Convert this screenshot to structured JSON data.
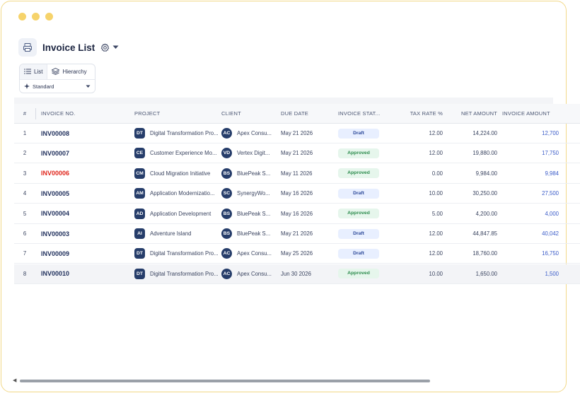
{
  "window": {
    "title": "Invoice List",
    "dot_color": "#f6d36b"
  },
  "icons": {
    "app": "invoice-list-icon",
    "settings": "gear-icon",
    "dropdown": "caret-down-icon",
    "list": "list-icon",
    "hierarchy": "layers-icon"
  },
  "views": {
    "list_label": "List",
    "hierarchy_label": "Hierarchy",
    "filter_label": "Standard"
  },
  "table": {
    "headers": {
      "num": "#",
      "invoice_no": "INVOICE NO.",
      "project": "PROJECT",
      "client": "CLIENT",
      "due_date": "DUE DATE",
      "status": "INVOICE STAT...",
      "tax_rate": "TAX RATE %",
      "net_amount": "NET AMOUNT",
      "invoice_amount": "INVOICE AMOUNT"
    },
    "rows": [
      {
        "num": "1",
        "invoice_no": "INV00008",
        "project_initials": "DT",
        "project": "Digital Transformation Pro...",
        "client_initials": "AC",
        "client": "Apex Consu...",
        "due_date": "May 21 2026",
        "status": "Draft",
        "tax_rate": "12.00",
        "net_amount": "14,224.00",
        "invoice_amount": "12,700"
      },
      {
        "num": "2",
        "invoice_no": "INV00007",
        "project_initials": "CE",
        "project": "Customer Experience Mo...",
        "client_initials": "VD",
        "client": "Vertex Digit...",
        "due_date": "May 21 2026",
        "status": "Approved",
        "tax_rate": "12.00",
        "net_amount": "19,880.00",
        "invoice_amount": "17,750"
      },
      {
        "num": "3",
        "invoice_no": "INV00006",
        "project_initials": "CM",
        "project": "Cloud Migration Initiative",
        "client_initials": "BS",
        "client": "BluePeak S...",
        "due_date": "May 11 2026",
        "status": "Approved",
        "tax_rate": "0.00",
        "net_amount": "9,984.00",
        "invoice_amount": "9,984"
      },
      {
        "num": "4",
        "invoice_no": "INV00005",
        "project_initials": "AM",
        "project": "Application Modernizatio...",
        "client_initials": "SC",
        "client": "SynergyWo...",
        "due_date": "May 16 2026",
        "status": "Draft",
        "tax_rate": "10.00",
        "net_amount": "30,250.00",
        "invoice_amount": "27,500"
      },
      {
        "num": "5",
        "invoice_no": "INV00004",
        "project_initials": "AD",
        "project": "Application Development",
        "client_initials": "BS",
        "client": "BluePeak S...",
        "due_date": "May 16 2026",
        "status": "Approved",
        "tax_rate": "5.00",
        "net_amount": "4,200.00",
        "invoice_amount": "4,000"
      },
      {
        "num": "6",
        "invoice_no": "INV00003",
        "project_initials": "AI",
        "project": "Adventure Island",
        "client_initials": "BS",
        "client": "BluePeak S...",
        "due_date": "May 21 2026",
        "status": "Draft",
        "tax_rate": "12.00",
        "net_amount": "44,847.85",
        "invoice_amount": "40,042"
      },
      {
        "num": "7",
        "invoice_no": "INV00009",
        "project_initials": "DT",
        "project": "Digital Transformation Pro...",
        "client_initials": "AC",
        "client": "Apex Consu...",
        "due_date": "May 25 2026",
        "status": "Draft",
        "tax_rate": "12.00",
        "net_amount": "18,760.00",
        "invoice_amount": "16,750"
      },
      {
        "num": "8",
        "invoice_no": "INV00010",
        "project_initials": "DT",
        "project": "Digital Transformation Pro...",
        "client_initials": "AC",
        "client": "Apex Consu...",
        "due_date": "Jun 30 2026",
        "status": "Approved",
        "tax_rate": "10.00",
        "net_amount": "1,650.00",
        "invoice_amount": "1,500"
      }
    ]
  },
  "colors": {
    "accent_link": "#3a5bc8",
    "overdue_text": "#e0251b",
    "draft_badge": "#e8efff",
    "approved_badge": "#e6f6ec",
    "avatar_bg": "#263d6a"
  }
}
